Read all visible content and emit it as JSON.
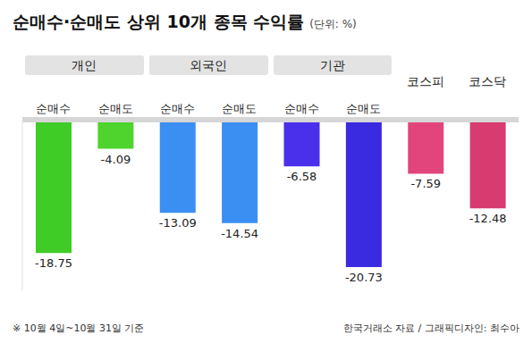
{
  "chart_data": {
    "type": "bar",
    "title": "순매수·순매도 상위 10개 종목 수익률",
    "subtitle": "(단위: %)",
    "categories": [
      "순매수",
      "순매도",
      "순매수",
      "순매도",
      "순매수",
      "순매도",
      null,
      null
    ],
    "groups": [
      {
        "label": "개인",
        "size": 2
      },
      {
        "label": "외국인",
        "size": 2
      },
      {
        "label": "기관",
        "size": 2
      },
      {
        "label": "코스피",
        "size": 1
      },
      {
        "label": "코스닥",
        "size": 1
      }
    ],
    "values": [
      -18.75,
      -4.09,
      -13.09,
      -14.54,
      -6.58,
      -20.73,
      -7.59,
      -12.48
    ],
    "colors": [
      "#3fcc27",
      "#4ed42c",
      "#3b8ef2",
      "#3b8ef2",
      "#4a30ea",
      "#3a2be0",
      "#e2457c",
      "#d83b6f"
    ],
    "ylim": [
      -24,
      0
    ],
    "data_labels": true,
    "tick_labels": "x",
    "grid": false,
    "note": "※ 10월 4일~10월 31일 기준",
    "source": "한국거래소 자료 / 그래픽디자인: 최수아"
  }
}
